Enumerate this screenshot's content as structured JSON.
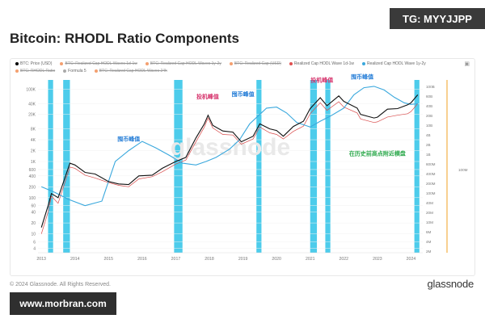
{
  "header": {
    "title": "Bitcoin: RHODL Ratio Components",
    "telegram_tag": "TG: MYYJJPP"
  },
  "legend": {
    "items": [
      {
        "label": "BTC: Price (USD)",
        "color": "#000000",
        "struck": false
      },
      {
        "label": "BTC: Realized Cap HODL Waves 1d-1w",
        "color": "#f4a070",
        "struck": true
      },
      {
        "label": "BTC: Realized Cap HODL Waves 1y-2y",
        "color": "#f4a070",
        "struck": true
      },
      {
        "label": "BTC: Realized Cap (USD)",
        "color": "#f4a070",
        "struck": true
      },
      {
        "label": "Realized Cap HODL Wave 1d-1w",
        "color": "#e05050",
        "struck": false
      },
      {
        "label": "Realized Cap HODL Wave 1y-2y",
        "color": "#3aa8dd",
        "struck": false
      },
      {
        "label": "BTC: RHODL Ratio",
        "color": "#f4a070",
        "struck": true
      },
      {
        "label": "Formula 5",
        "color": "#aaaaaa",
        "struck": false
      },
      {
        "label": "BTC: Realized Cap HODL Waves 24h",
        "color": "#f4a070",
        "struck": true
      }
    ]
  },
  "footer": {
    "copyright": "© 2024 Glassnode. All Rights Reserved.",
    "brand": "glassnode",
    "website": "www.morbran.com"
  },
  "chart_data": {
    "type": "line",
    "watermark": "glassnode",
    "x_ticks": [
      "2013",
      "2014",
      "2015",
      "2016",
      "2017",
      "2018",
      "2019",
      "2020",
      "2021",
      "2022",
      "2023",
      "2024"
    ],
    "y_left_ticks": [
      "100K",
      "40K",
      "20K",
      "8K",
      "4K",
      "2K",
      "1K",
      "600",
      "400",
      "200",
      "100",
      "60",
      "40",
      "20",
      "10",
      "6",
      "4"
    ],
    "y_right_ticks": [
      "100B",
      "60B",
      "40B",
      "20B",
      "10B",
      "4B",
      "2B",
      "1B",
      "600M",
      "400M",
      "200M",
      "100M",
      "40M",
      "20M",
      "10M",
      "6M",
      "4M",
      "2M"
    ],
    "y_right_label_extra": "100M",
    "colors": {
      "price": "#111111",
      "wave_1d1w": "#d94a4a",
      "wave_1y2y": "#3aa8dd",
      "highlight": "#2ec3e8",
      "top_marker": "#d6336c"
    },
    "annotations": [
      {
        "text": "囤币峰值",
        "color": "#1f7ad6",
        "x": 2015.6,
        "y_price": 3000
      },
      {
        "text": "投机峰值",
        "color": "#d6336c",
        "x": 2017.95,
        "y_price": 45000
      },
      {
        "text": "囤币峰值",
        "color": "#1f7ad6",
        "x": 2019.0,
        "y_price": 52000
      },
      {
        "text": "投机峰值",
        "color": "#d6336c",
        "x": 2021.35,
        "y_price": 130000
      },
      {
        "text": "囤币峰值",
        "color": "#1f7ad6",
        "x": 2022.55,
        "y_price": 160000
      },
      {
        "text": "在历史前高点附近横盘",
        "color": "#2aa84a",
        "x": 2023.0,
        "y_price": 1200
      }
    ],
    "highlight_bands": [
      [
        2013.2,
        2013.35
      ],
      [
        2013.65,
        2013.85
      ],
      [
        2016.95,
        2017.2
      ],
      [
        2019.4,
        2019.55
      ],
      [
        2021.0,
        2021.2
      ],
      [
        2021.45,
        2021.6
      ],
      [
        2024.1,
        2024.25
      ]
    ],
    "series": [
      {
        "name": "BTC: Price (USD)",
        "x": [
          2013.0,
          2013.2,
          2013.3,
          2013.5,
          2013.85,
          2014.0,
          2014.3,
          2014.6,
          2015.0,
          2015.3,
          2015.6,
          2015.9,
          2016.3,
          2016.6,
          2017.0,
          2017.3,
          2017.6,
          2017.85,
          2017.96,
          2018.1,
          2018.4,
          2018.7,
          2018.95,
          2019.3,
          2019.5,
          2019.8,
          2020.0,
          2020.2,
          2020.5,
          2020.8,
          2021.0,
          2021.3,
          2021.5,
          2021.85,
          2022.0,
          2022.4,
          2022.5,
          2022.9,
          2023.0,
          2023.3,
          2023.6,
          2023.9,
          2024.0,
          2024.2
        ],
        "y": [
          15,
          60,
          130,
          100,
          900,
          800,
          500,
          450,
          280,
          240,
          230,
          400,
          420,
          650,
          1000,
          1300,
          4500,
          11000,
          19000,
          10000,
          7000,
          6500,
          3500,
          5000,
          11000,
          8000,
          7200,
          5000,
          9300,
          13000,
          29000,
          58000,
          35000,
          65000,
          46000,
          30000,
          20000,
          16000,
          16800,
          28000,
          29000,
          37000,
          42000,
          70000
        ]
      },
      {
        "name": "Realized Cap HODL Wave 1d-1w",
        "x": [
          2013.0,
          2013.2,
          2013.3,
          2013.5,
          2013.85,
          2014.0,
          2014.3,
          2014.6,
          2015.0,
          2015.3,
          2015.6,
          2015.9,
          2016.3,
          2016.6,
          2017.0,
          2017.3,
          2017.6,
          2017.85,
          2017.96,
          2018.1,
          2018.4,
          2018.7,
          2018.95,
          2019.3,
          2019.5,
          2019.8,
          2020.0,
          2020.2,
          2020.5,
          2020.8,
          2021.0,
          2021.3,
          2021.5,
          2021.85,
          2022.0,
          2022.4,
          2022.5,
          2022.9,
          2023.0,
          2023.3,
          2023.6,
          2023.9,
          2024.0,
          2024.2
        ],
        "y": [
          10,
          40,
          110,
          70,
          700,
          650,
          420,
          350,
          260,
          220,
          200,
          330,
          380,
          520,
          850,
          1100,
          3500,
          9000,
          16000,
          8500,
          5600,
          5400,
          3000,
          4200,
          9000,
          6200,
          5600,
          4200,
          6800,
          9500,
          21000,
          42000,
          26000,
          45000,
          32000,
          22000,
          15000,
          12000,
          12500,
          17000,
          19000,
          21000,
          24000,
          40000
        ]
      },
      {
        "name": "Realized Cap HODL Wave 1y-2y",
        "x": [
          2013.0,
          2013.4,
          2013.8,
          2014.3,
          2014.8,
          2015.2,
          2015.6,
          2016.0,
          2016.4,
          2016.8,
          2017.2,
          2017.6,
          2017.9,
          2018.2,
          2018.6,
          2018.9,
          2019.2,
          2019.5,
          2019.7,
          2020.0,
          2020.3,
          2020.6,
          2021.0,
          2021.3,
          2021.6,
          2022.0,
          2022.3,
          2022.6,
          2022.9,
          2023.2,
          2023.5,
          2023.8,
          2024.0,
          2024.2
        ],
        "y": [
          200,
          140,
          90,
          60,
          80,
          1000,
          2000,
          3600,
          2400,
          1500,
          900,
          800,
          1000,
          1300,
          2200,
          4000,
          11000,
          20000,
          30000,
          32000,
          22000,
          12000,
          9000,
          13000,
          18000,
          30000,
          70000,
          110000,
          120000,
          95000,
          60000,
          42000,
          38000,
          40000
        ]
      }
    ]
  }
}
